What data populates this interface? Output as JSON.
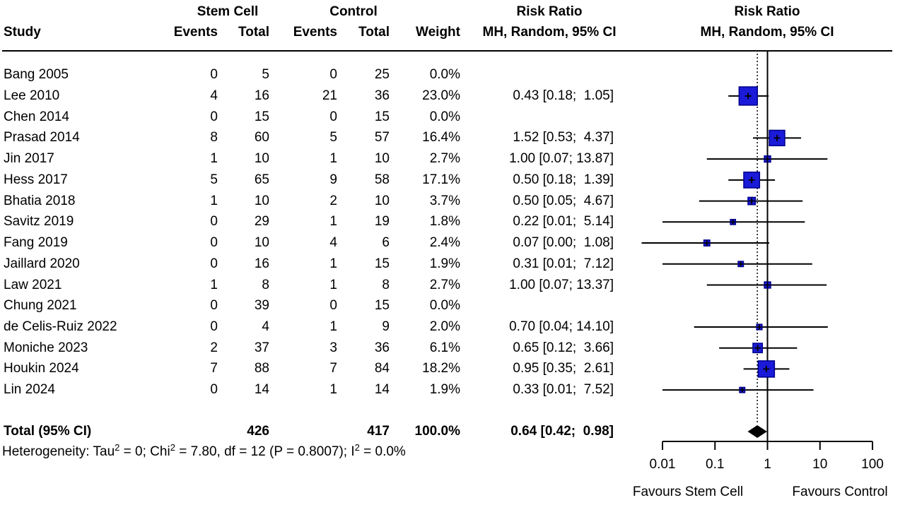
{
  "chart_data": {
    "type": "forest",
    "effect_measure": "Risk Ratio",
    "model": "MH, Random, 95% CI",
    "group_headers": {
      "treatment": "Stem Cell",
      "control": "Control"
    },
    "column_headers": {
      "study": "Study",
      "events": "Events",
      "total": "Total",
      "weight": "Weight",
      "effect_title": "Risk Ratio",
      "effect_sub": "MH, Random, 95% CI"
    },
    "studies": [
      {
        "name": "Bang 2005",
        "t_events": "0",
        "t_total": "5",
        "c_events": "0",
        "c_total": "25",
        "weight": "0.0%",
        "rr_text": "",
        "rr": null,
        "lo": null,
        "hi": null,
        "w": 0
      },
      {
        "name": "Lee 2010",
        "t_events": "4",
        "t_total": "16",
        "c_events": "21",
        "c_total": "36",
        "weight": "23.0%",
        "rr_text": "0.43 [0.18;  1.05]",
        "rr": 0.43,
        "lo": 0.18,
        "hi": 1.05,
        "w": 23.0
      },
      {
        "name": "Chen 2014",
        "t_events": "0",
        "t_total": "15",
        "c_events": "0",
        "c_total": "15",
        "weight": "0.0%",
        "rr_text": "",
        "rr": null,
        "lo": null,
        "hi": null,
        "w": 0
      },
      {
        "name": "Prasad 2014",
        "t_events": "8",
        "t_total": "60",
        "c_events": "5",
        "c_total": "57",
        "weight": "16.4%",
        "rr_text": "1.52 [0.53;  4.37]",
        "rr": 1.52,
        "lo": 0.53,
        "hi": 4.37,
        "w": 16.4
      },
      {
        "name": "Jin 2017",
        "t_events": "1",
        "t_total": "10",
        "c_events": "1",
        "c_total": "10",
        "weight": "2.7%",
        "rr_text": "1.00 [0.07; 13.87]",
        "rr": 1.0,
        "lo": 0.07,
        "hi": 13.87,
        "w": 2.7
      },
      {
        "name": "Hess 2017",
        "t_events": "5",
        "t_total": "65",
        "c_events": "9",
        "c_total": "58",
        "weight": "17.1%",
        "rr_text": "0.50 [0.18;  1.39]",
        "rr": 0.5,
        "lo": 0.18,
        "hi": 1.39,
        "w": 17.1
      },
      {
        "name": "Bhatia 2018",
        "t_events": "1",
        "t_total": "10",
        "c_events": "2",
        "c_total": "10",
        "weight": "3.7%",
        "rr_text": "0.50 [0.05;  4.67]",
        "rr": 0.5,
        "lo": 0.05,
        "hi": 4.67,
        "w": 3.7
      },
      {
        "name": "Savitz 2019",
        "t_events": "0",
        "t_total": "29",
        "c_events": "1",
        "c_total": "19",
        "weight": "1.8%",
        "rr_text": "0.22 [0.01;  5.14]",
        "rr": 0.22,
        "lo": 0.01,
        "hi": 5.14,
        "w": 1.8
      },
      {
        "name": "Fang 2019",
        "t_events": "0",
        "t_total": "10",
        "c_events": "4",
        "c_total": "6",
        "weight": "2.4%",
        "rr_text": "0.07 [0.00;  1.08]",
        "rr": 0.07,
        "lo": 0.0,
        "hi": 1.08,
        "draw_lo": 0.004,
        "w": 2.4
      },
      {
        "name": "Jaillard 2020",
        "t_events": "0",
        "t_total": "16",
        "c_events": "1",
        "c_total": "15",
        "weight": "1.9%",
        "rr_text": "0.31 [0.01;  7.12]",
        "rr": 0.31,
        "lo": 0.01,
        "hi": 7.12,
        "w": 1.9
      },
      {
        "name": "Law 2021",
        "t_events": "1",
        "t_total": "8",
        "c_events": "1",
        "c_total": "8",
        "weight": "2.7%",
        "rr_text": "1.00 [0.07; 13.37]",
        "rr": 1.0,
        "lo": 0.07,
        "hi": 13.37,
        "w": 2.7
      },
      {
        "name": "Chung 2021",
        "t_events": "0",
        "t_total": "39",
        "c_events": "0",
        "c_total": "15",
        "weight": "0.0%",
        "rr_text": "",
        "rr": null,
        "lo": null,
        "hi": null,
        "w": 0
      },
      {
        "name": "de Celis-Ruiz 2022",
        "t_events": "0",
        "t_total": "4",
        "c_events": "1",
        "c_total": "9",
        "weight": "2.0%",
        "rr_text": "0.70 [0.04; 14.10]",
        "rr": 0.7,
        "lo": 0.04,
        "hi": 14.1,
        "w": 2.0
      },
      {
        "name": "Moniche 2023",
        "t_events": "2",
        "t_total": "37",
        "c_events": "3",
        "c_total": "36",
        "weight": "6.1%",
        "rr_text": "0.65 [0.12;  3.66]",
        "rr": 0.65,
        "lo": 0.12,
        "hi": 3.66,
        "w": 6.1
      },
      {
        "name": "Houkin 2024",
        "t_events": "7",
        "t_total": "88",
        "c_events": "7",
        "c_total": "84",
        "weight": "18.2%",
        "rr_text": "0.95 [0.35;  2.61]",
        "rr": 0.95,
        "lo": 0.35,
        "hi": 2.61,
        "w": 18.2
      },
      {
        "name": "Lin 2024",
        "t_events": "0",
        "t_total": "14",
        "c_events": "1",
        "c_total": "14",
        "weight": "1.9%",
        "rr_text": "0.33 [0.01;  7.52]",
        "rr": 0.33,
        "lo": 0.01,
        "hi": 7.52,
        "w": 1.9
      }
    ],
    "total_row": {
      "label": "Total (95% CI)",
      "t_total": "426",
      "c_total": "417",
      "weight": "100.0%",
      "rr_text": "0.64 [0.42;  0.98]",
      "rr": 0.64,
      "lo": 0.42,
      "hi": 0.98
    },
    "heterogeneity_segments": [
      {
        "t": "Heterogeneity: Tau"
      },
      {
        "t": "2",
        "sup": true
      },
      {
        "t": " = 0; Chi"
      },
      {
        "t": "2",
        "sup": true
      },
      {
        "t": " = 7.80, df = 12 (P = 0.8007); I"
      },
      {
        "t": "2",
        "sup": true
      },
      {
        "t": " = 0.0%"
      }
    ],
    "axis": {
      "scale": "log",
      "tick_labels": [
        "0.01",
        "0.1",
        "1",
        "10",
        "100"
      ],
      "tick_values": [
        0.01,
        0.1,
        1,
        10,
        100
      ],
      "null_value": 1,
      "pooled_value": 0.64,
      "favours_left": "Favours Stem Cell",
      "favours_right": "Favours Control"
    },
    "colors": {
      "square_fill": "#1A1AD8",
      "square_border": "#00008B",
      "line": "#000000",
      "diamond": "#000000",
      "text": "#000000"
    }
  }
}
